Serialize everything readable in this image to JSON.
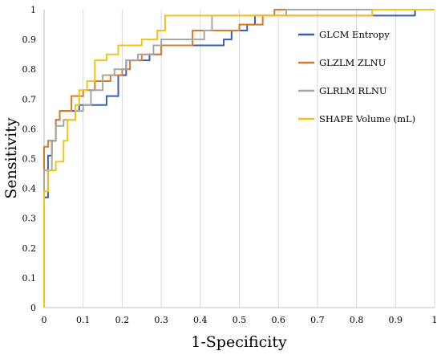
{
  "chart_data": {
    "type": "line",
    "title": "",
    "xlabel": "1-Specificity",
    "ylabel": "Sensitivity",
    "xlim": [
      0,
      1
    ],
    "ylim": [
      0,
      1
    ],
    "x_ticks": [
      "0",
      "0.1",
      "0.2",
      "0.3",
      "0.4",
      "0.5",
      "0.6",
      "0.7",
      "0.8",
      "0.9",
      "1"
    ],
    "y_ticks": [
      "0",
      "0.1",
      "0.2",
      "0.3",
      "0.4",
      "0.5",
      "0.6",
      "0.7",
      "0.8",
      "0.9",
      "1"
    ],
    "grid": "vertical",
    "legend_position": "right",
    "series": [
      {
        "name": "GLCM Entropy",
        "color": "#3a5fb3",
        "points": [
          [
            0,
            0.37
          ],
          [
            0.01,
            0.37
          ],
          [
            0.01,
            0.51
          ],
          [
            0.02,
            0.51
          ],
          [
            0.02,
            0.56
          ],
          [
            0.03,
            0.56
          ],
          [
            0.03,
            0.63
          ],
          [
            0.04,
            0.63
          ],
          [
            0.04,
            0.66
          ],
          [
            0.09,
            0.66
          ],
          [
            0.09,
            0.68
          ],
          [
            0.16,
            0.68
          ],
          [
            0.16,
            0.71
          ],
          [
            0.19,
            0.71
          ],
          [
            0.19,
            0.78
          ],
          [
            0.21,
            0.78
          ],
          [
            0.21,
            0.83
          ],
          [
            0.27,
            0.83
          ],
          [
            0.27,
            0.85
          ],
          [
            0.3,
            0.85
          ],
          [
            0.3,
            0.88
          ],
          [
            0.43,
            0.88
          ],
          [
            0.43,
            0.88
          ],
          [
            0.46,
            0.88
          ],
          [
            0.46,
            0.9
          ],
          [
            0.48,
            0.9
          ],
          [
            0.48,
            0.93
          ],
          [
            0.52,
            0.93
          ],
          [
            0.52,
            0.95
          ],
          [
            0.54,
            0.95
          ],
          [
            0.54,
            0.98
          ],
          [
            0.95,
            0.98
          ],
          [
            0.95,
            1
          ],
          [
            1,
            1
          ]
        ]
      },
      {
        "name": "GLZLM ZLNU",
        "color": "#d97a2b",
        "points": [
          [
            0,
            0
          ],
          [
            0,
            0.54
          ],
          [
            0.01,
            0.54
          ],
          [
            0.01,
            0.56
          ],
          [
            0.03,
            0.56
          ],
          [
            0.03,
            0.63
          ],
          [
            0.04,
            0.63
          ],
          [
            0.04,
            0.66
          ],
          [
            0.07,
            0.66
          ],
          [
            0.07,
            0.71
          ],
          [
            0.1,
            0.71
          ],
          [
            0.1,
            0.73
          ],
          [
            0.13,
            0.73
          ],
          [
            0.13,
            0.76
          ],
          [
            0.17,
            0.76
          ],
          [
            0.17,
            0.78
          ],
          [
            0.2,
            0.78
          ],
          [
            0.2,
            0.8
          ],
          [
            0.22,
            0.8
          ],
          [
            0.22,
            0.83
          ],
          [
            0.25,
            0.83
          ],
          [
            0.25,
            0.85
          ],
          [
            0.3,
            0.85
          ],
          [
            0.3,
            0.88
          ],
          [
            0.38,
            0.88
          ],
          [
            0.38,
            0.93
          ],
          [
            0.5,
            0.93
          ],
          [
            0.5,
            0.95
          ],
          [
            0.56,
            0.95
          ],
          [
            0.56,
            0.98
          ],
          [
            0.59,
            0.98
          ],
          [
            0.59,
            1
          ],
          [
            1,
            1
          ]
        ]
      },
      {
        "name": "GLRLM RLNU",
        "color": "#a6a6a6",
        "points": [
          [
            0,
            0
          ],
          [
            0,
            0.46
          ],
          [
            0.02,
            0.46
          ],
          [
            0.02,
            0.56
          ],
          [
            0.03,
            0.56
          ],
          [
            0.03,
            0.61
          ],
          [
            0.05,
            0.61
          ],
          [
            0.05,
            0.63
          ],
          [
            0.08,
            0.63
          ],
          [
            0.08,
            0.66
          ],
          [
            0.1,
            0.66
          ],
          [
            0.1,
            0.68
          ],
          [
            0.12,
            0.68
          ],
          [
            0.12,
            0.73
          ],
          [
            0.15,
            0.73
          ],
          [
            0.15,
            0.78
          ],
          [
            0.18,
            0.78
          ],
          [
            0.18,
            0.8
          ],
          [
            0.21,
            0.8
          ],
          [
            0.21,
            0.83
          ],
          [
            0.24,
            0.83
          ],
          [
            0.24,
            0.85
          ],
          [
            0.28,
            0.85
          ],
          [
            0.28,
            0.88
          ],
          [
            0.3,
            0.88
          ],
          [
            0.3,
            0.9
          ],
          [
            0.41,
            0.9
          ],
          [
            0.41,
            0.93
          ],
          [
            0.43,
            0.93
          ],
          [
            0.43,
            0.98
          ],
          [
            0.62,
            0.98
          ],
          [
            0.62,
            1
          ],
          [
            1,
            1
          ]
        ]
      },
      {
        "name": "SHAPE Volume (mL)",
        "color": "#f0c419",
        "points": [
          [
            0,
            0
          ],
          [
            0,
            0.39
          ],
          [
            0.01,
            0.39
          ],
          [
            0.01,
            0.46
          ],
          [
            0.03,
            0.46
          ],
          [
            0.03,
            0.49
          ],
          [
            0.05,
            0.49
          ],
          [
            0.05,
            0.56
          ],
          [
            0.06,
            0.56
          ],
          [
            0.06,
            0.63
          ],
          [
            0.08,
            0.63
          ],
          [
            0.08,
            0.68
          ],
          [
            0.09,
            0.68
          ],
          [
            0.09,
            0.73
          ],
          [
            0.11,
            0.73
          ],
          [
            0.11,
            0.76
          ],
          [
            0.13,
            0.76
          ],
          [
            0.13,
            0.83
          ],
          [
            0.16,
            0.83
          ],
          [
            0.16,
            0.85
          ],
          [
            0.19,
            0.85
          ],
          [
            0.19,
            0.88
          ],
          [
            0.25,
            0.88
          ],
          [
            0.25,
            0.9
          ],
          [
            0.29,
            0.9
          ],
          [
            0.29,
            0.93
          ],
          [
            0.31,
            0.93
          ],
          [
            0.31,
            0.98
          ],
          [
            0.84,
            0.98
          ],
          [
            0.84,
            1
          ],
          [
            1,
            1
          ]
        ]
      }
    ]
  }
}
